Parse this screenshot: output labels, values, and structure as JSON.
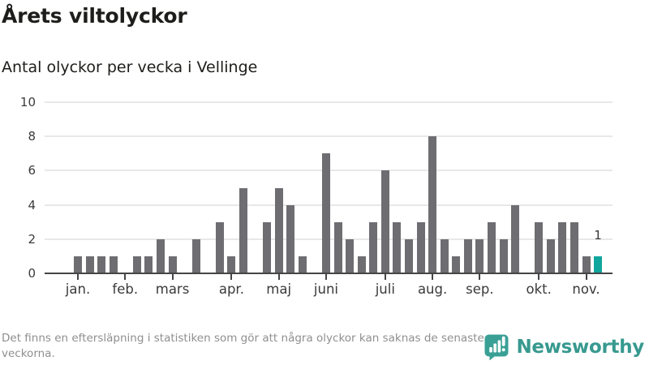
{
  "header": {},
  "chart_data": {
    "type": "bar",
    "title": "Årets viltolyckor",
    "subtitle": "Antal olyckor per vecka i Vellinge",
    "xlabel": "",
    "ylabel": "",
    "x_unit": "vecka",
    "values": [
      1,
      1,
      1,
      1,
      0,
      1,
      1,
      2,
      1,
      0,
      2,
      0,
      3,
      1,
      5,
      0,
      3,
      5,
      4,
      1,
      0,
      7,
      3,
      2,
      1,
      3,
      6,
      3,
      2,
      3,
      8,
      2,
      1,
      2,
      2,
      3,
      2,
      4,
      0,
      3,
      2,
      3,
      3,
      1,
      1
    ],
    "month_ticks": [
      {
        "label": "jan.",
        "week": 1
      },
      {
        "label": "feb.",
        "week": 5
      },
      {
        "label": "mars",
        "week": 9
      },
      {
        "label": "apr.",
        "week": 14
      },
      {
        "label": "maj",
        "week": 18
      },
      {
        "label": "juni",
        "week": 22
      },
      {
        "label": "juli",
        "week": 27
      },
      {
        "label": "aug.",
        "week": 31
      },
      {
        "label": "sep.",
        "week": 35
      },
      {
        "label": "okt.",
        "week": 40
      },
      {
        "label": "nov.",
        "week": 44
      }
    ],
    "yticks": [
      0,
      2,
      4,
      6,
      8,
      10
    ],
    "ylim": [
      0,
      10
    ],
    "grid": true,
    "legend": false,
    "last_bar_highlighted": true,
    "last_bar_label": "1",
    "bar_color": "#6e6d71",
    "highlight_color": "#10a69e"
  },
  "footer": {
    "note": "Det finns en eftersläpning i statistiken som gör att några olyckor kan saknas de senaste veckorna.",
    "brand": "Newsworthy"
  }
}
